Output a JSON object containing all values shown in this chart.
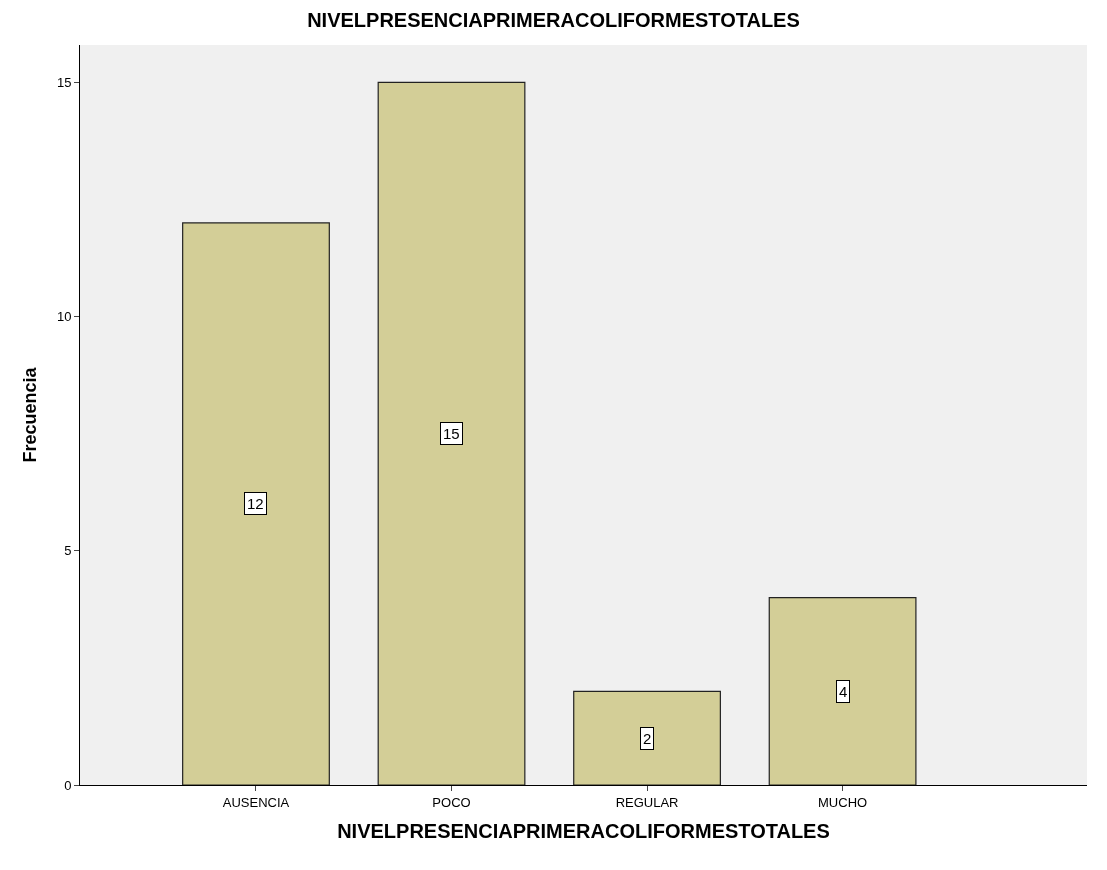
{
  "chart_data": {
    "type": "bar",
    "title": "NIVELPRESENCIAPRIMERACOLIFORMESTOTALES",
    "xlabel": "NIVELPRESENCIAPRIMERACOLIFORMESTOTALES",
    "ylabel": "Frecuencia",
    "categories": [
      "AUSENCIA",
      "POCO",
      "REGULAR",
      "MUCHO"
    ],
    "values": [
      12,
      15,
      2,
      4
    ],
    "color": "#d3ce97",
    "ylim": [
      0,
      15.8
    ],
    "yticks": [
      0,
      5,
      10,
      15
    ],
    "grid": false,
    "data_labels": true
  }
}
